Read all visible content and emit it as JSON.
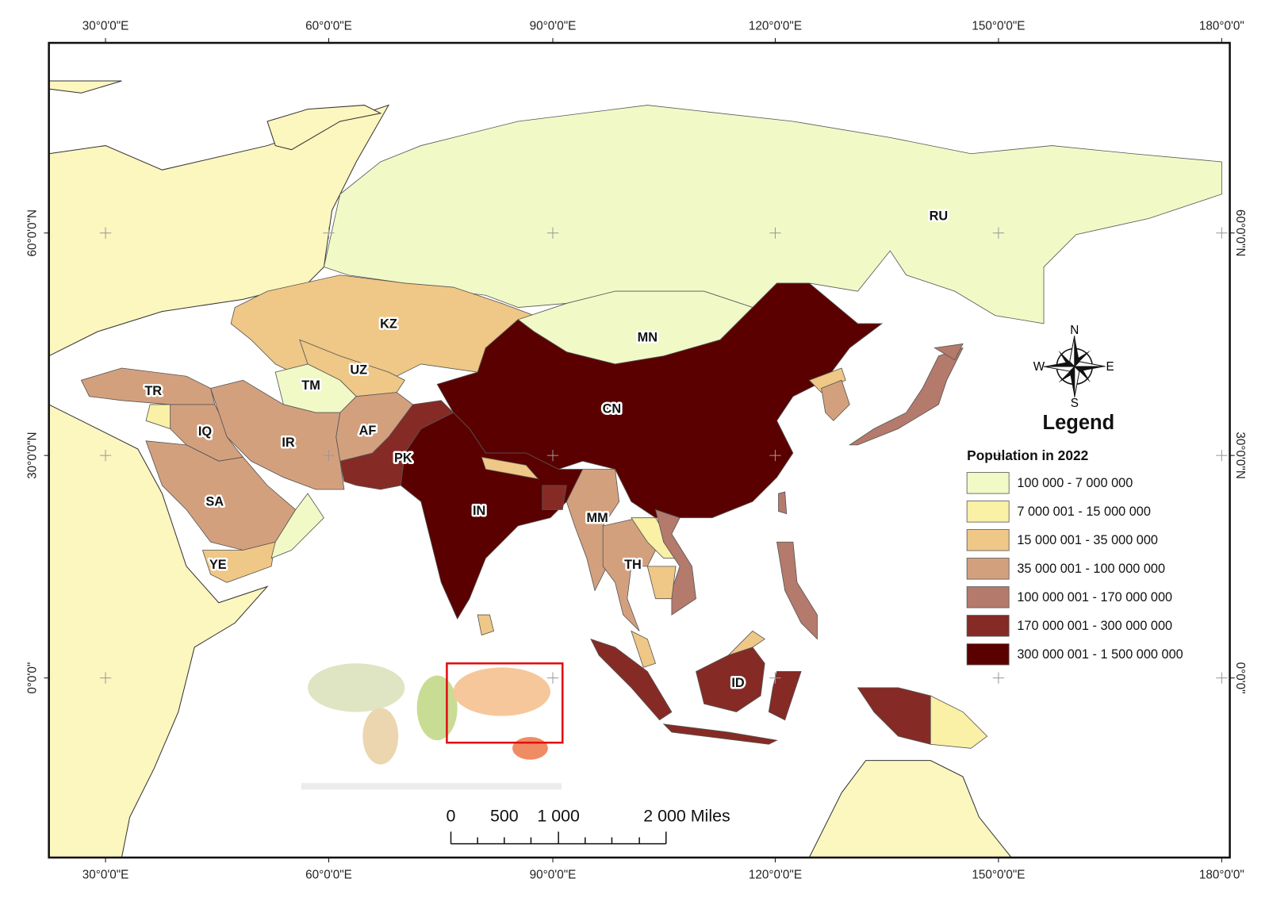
{
  "graticule": {
    "longitudes": [
      "30°0'0\"E",
      "60°0'0\"E",
      "90°0'0\"E",
      "120°0'0\"E",
      "150°0'0\"E",
      "180°0'0\""
    ],
    "latitudes": [
      "60°0'0\"N",
      "30°0'0\"N",
      "0°0'0\""
    ]
  },
  "countries": [
    "RU",
    "MN",
    "KZ",
    "UZ",
    "TM",
    "TR",
    "IQ",
    "IR",
    "AF",
    "PK",
    "SA",
    "YE",
    "IN",
    "CN",
    "MM",
    "TH",
    "ID"
  ],
  "legend": {
    "title": "Legend",
    "subtitle": "Population in 2022",
    "classes": [
      {
        "label": "100 000 - 7 000 000",
        "color": "#f1f9c7"
      },
      {
        "label": "7 000 001 - 15 000 000",
        "color": "#faf0a6"
      },
      {
        "label": "15 000 001 - 35 000 000",
        "color": "#efc786"
      },
      {
        "label": "35 000 001 - 100 000 000",
        "color": "#d3a07e"
      },
      {
        "label": "100 000 001 - 170 000 000",
        "color": "#b47a6c"
      },
      {
        "label": "170 000 001 - 300 000 000",
        "color": "#862a25"
      },
      {
        "label": "300 000 001 - 1 500 000 000",
        "color": "#5a0000"
      }
    ]
  },
  "compass": {
    "n": "N",
    "e": "E",
    "s": "S",
    "w": "W"
  },
  "scale_bar": [
    "0",
    "500",
    "1 000",
    "2 000 Miles"
  ]
}
